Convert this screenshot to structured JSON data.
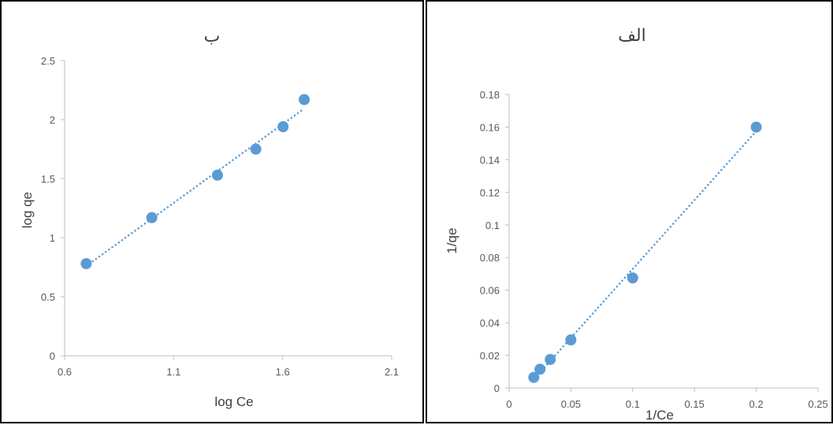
{
  "chart_data": [
    {
      "type": "scatter",
      "title": "ب",
      "xlabel": "log Ce",
      "ylabel": "log qe",
      "xlim": [
        0.6,
        2.1
      ],
      "ylim": [
        0,
        2.5
      ],
      "x_ticks": [
        "0.6",
        "1.1",
        "1.6",
        "2.1"
      ],
      "y_ticks": [
        "0",
        "0.5",
        "1",
        "1.5",
        "2",
        "2.5"
      ],
      "trendline": "linear-dotted",
      "grid": false,
      "color": "#5B9BD5",
      "series": [
        {
          "x": [
            0.699,
            1.0,
            1.301,
            1.477,
            1.602,
            1.699
          ],
          "y": [
            0.78,
            1.17,
            1.53,
            1.75,
            1.94,
            2.17
          ]
        }
      ]
    },
    {
      "type": "scatter",
      "title": "الف",
      "xlabel": "1/Ce",
      "ylabel": "1/qe",
      "xlim": [
        0,
        0.25
      ],
      "ylim": [
        0,
        0.18
      ],
      "x_ticks": [
        "0",
        "0.05",
        "0.1",
        "0.15",
        "0.2",
        "0.25"
      ],
      "y_ticks": [
        "0",
        "0.02",
        "0.04",
        "0.06",
        "0.08",
        "0.1",
        "0.12",
        "0.14",
        "0.16",
        "0.18"
      ],
      "trendline": "linear-dotted",
      "grid": false,
      "color": "#5B9BD5",
      "series": [
        {
          "x": [
            0.02,
            0.025,
            0.0333,
            0.05,
            0.1,
            0.2
          ],
          "y": [
            0.0065,
            0.0115,
            0.0175,
            0.0295,
            0.0675,
            0.16
          ]
        }
      ]
    }
  ]
}
